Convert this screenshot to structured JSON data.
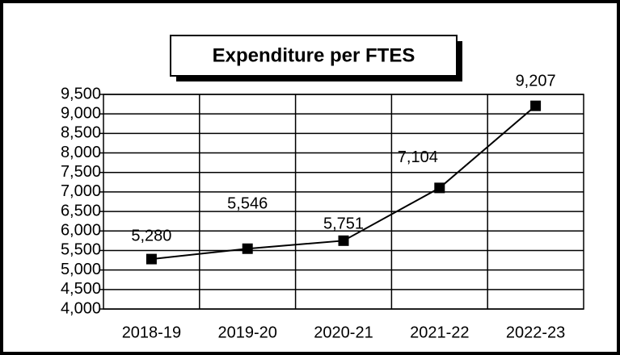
{
  "chart_data": {
    "type": "line",
    "title": "Expenditure per FTES",
    "categories": [
      "2018-19",
      "2019-20",
      "2020-21",
      "2021-22",
      "2022-23"
    ],
    "series": [
      {
        "name": "Expenditure per FTES",
        "color": "#000000",
        "values": [
          5280,
          5546,
          5751,
          7104,
          9207
        ],
        "value_labels": [
          "5,280",
          "5,546",
          "5,751",
          "7,104",
          "9,207"
        ]
      }
    ],
    "ylim": [
      4000,
      9500
    ],
    "yticks": [
      {
        "value": 4000,
        "label": "4,000"
      },
      {
        "value": 4500,
        "label": "4,500"
      },
      {
        "value": 5000,
        "label": "5,000"
      },
      {
        "value": 5500,
        "label": "5,500"
      },
      {
        "value": 6000,
        "label": "6,000"
      },
      {
        "value": 6500,
        "label": "6,500"
      },
      {
        "value": 7000,
        "label": "7,000"
      },
      {
        "value": 7500,
        "label": "7,500"
      },
      {
        "value": 8000,
        "label": "8,000"
      },
      {
        "value": 8500,
        "label": "8,500"
      },
      {
        "value": 9000,
        "label": "9,000"
      },
      {
        "value": 9500,
        "label": "9,500"
      }
    ],
    "grid": true
  }
}
